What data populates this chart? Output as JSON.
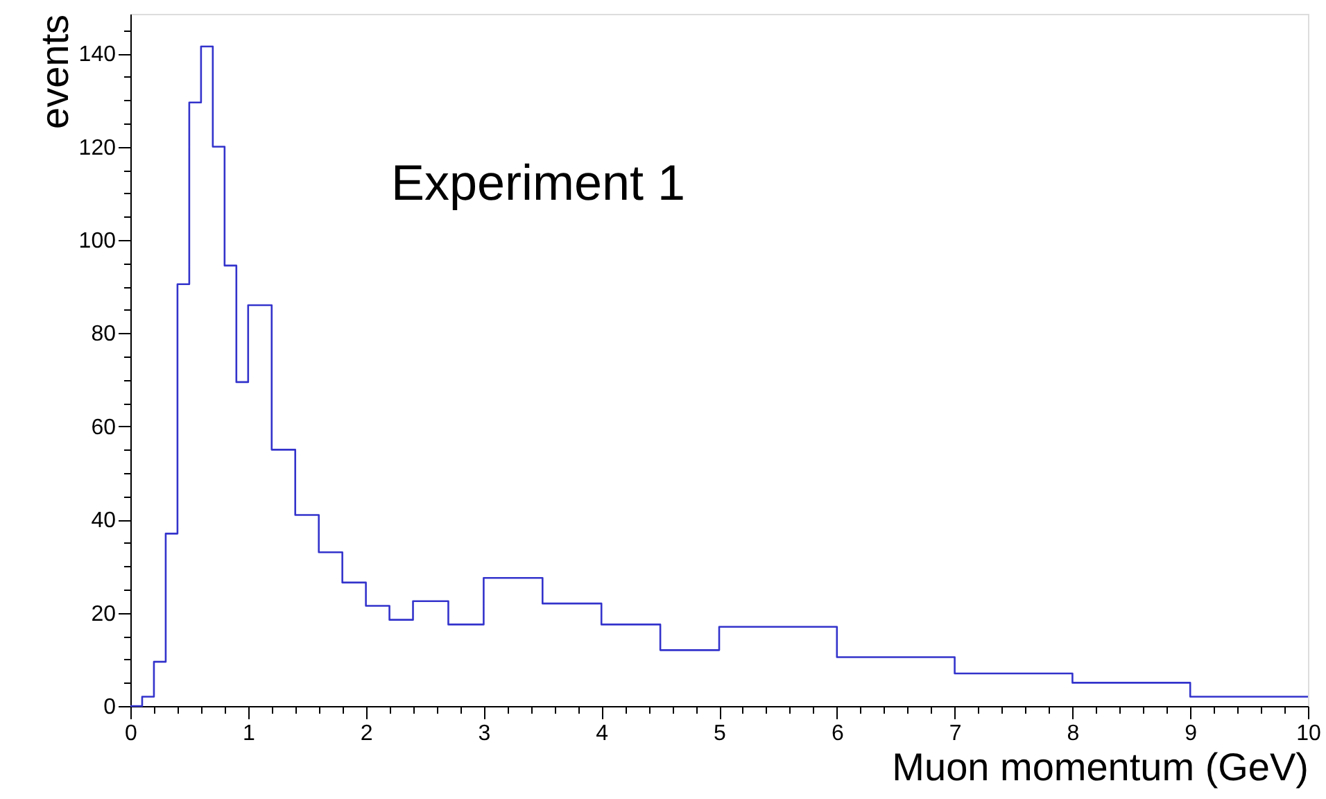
{
  "chart_data": {
    "type": "histogram",
    "xlabel": "Muon momentum (GeV)",
    "ylabel": "events",
    "annotations": [
      "Experiment 1"
    ],
    "bins": [
      0,
      0.1,
      0.2,
      0.3,
      0.4,
      0.5,
      0.6,
      0.7,
      0.8,
      0.9,
      1.0,
      1.2,
      1.4,
      1.6,
      1.8,
      2.0,
      2.2,
      2.4,
      2.7,
      3.0,
      3.5,
      4.0,
      4.5,
      5.0,
      6.0,
      7.0,
      8.0,
      9.0,
      10.0
    ],
    "values": [
      0,
      2,
      9.5,
      37,
      90.5,
      129.5,
      141.5,
      120,
      94.5,
      69.5,
      86,
      55,
      41,
      33,
      26.5,
      21.5,
      18.5,
      22.5,
      17.5,
      27.5,
      22,
      17.5,
      12,
      17,
      10.5,
      7,
      5,
      2
    ],
    "color": "#3333cc",
    "xlim": [
      0,
      10
    ],
    "ylim": [
      0,
      148.5
    ],
    "xticks": [
      0,
      {
        "value": 0.2,
        "label": null
      },
      {
        "value": 0.4,
        "label": null
      },
      {
        "value": 0.6,
        "label": null
      },
      {
        "value": 0.8,
        "label": null
      },
      1,
      {
        "value": 1.2,
        "label": null
      },
      {
        "value": 1.4,
        "label": null
      },
      {
        "value": 1.6,
        "label": null
      },
      {
        "value": 1.8,
        "label": null
      },
      2,
      {
        "value": 2.2,
        "label": null
      },
      {
        "value": 2.4,
        "label": null
      },
      {
        "value": 2.6,
        "label": null
      },
      {
        "value": 2.8,
        "label": null
      },
      3,
      {
        "value": 3.2,
        "label": null
      },
      {
        "value": 3.4,
        "label": null
      },
      {
        "value": 3.6,
        "label": null
      },
      {
        "value": 3.8,
        "label": null
      },
      4,
      {
        "value": 4.2,
        "label": null
      },
      {
        "value": 4.4,
        "label": null
      },
      {
        "value": 4.6,
        "label": null
      },
      {
        "value": 4.8,
        "label": null
      },
      5,
      {
        "value": 5.2,
        "label": null
      },
      {
        "value": 5.4,
        "label": null
      },
      {
        "value": 5.6,
        "label": null
      },
      {
        "value": 5.8,
        "label": null
      },
      6,
      {
        "value": 6.2,
        "label": null
      },
      {
        "value": 6.4,
        "label": null
      },
      {
        "value": 6.6,
        "label": null
      },
      {
        "value": 6.8,
        "label": null
      },
      7,
      {
        "value": 7.2,
        "label": null
      },
      {
        "value": 7.4,
        "label": null
      },
      {
        "value": 7.6,
        "label": null
      },
      {
        "value": 7.8,
        "label": null
      },
      8,
      {
        "value": 8.2,
        "label": null
      },
      {
        "value": 8.4,
        "label": null
      },
      {
        "value": 8.6,
        "label": null
      },
      {
        "value": 8.8,
        "label": null
      },
      9,
      {
        "value": 9.2,
        "label": null
      },
      {
        "value": 9.4,
        "label": null
      },
      {
        "value": 9.6,
        "label": null
      },
      {
        "value": 9.8,
        "label": null
      },
      10
    ],
    "yticks": [
      0,
      {
        "value": 5,
        "label": null
      },
      {
        "value": 10,
        "label": null
      },
      {
        "value": 15,
        "label": null
      },
      20,
      {
        "value": 25,
        "label": null
      },
      {
        "value": 30,
        "label": null
      },
      {
        "value": 35,
        "label": null
      },
      40,
      {
        "value": 45,
        "label": null
      },
      {
        "value": 50,
        "label": null
      },
      {
        "value": 55,
        "label": null
      },
      60,
      {
        "value": 65,
        "label": null
      },
      {
        "value": 70,
        "label": null
      },
      {
        "value": 75,
        "label": null
      },
      80,
      {
        "value": 85,
        "label": null
      },
      {
        "value": 90,
        "label": null
      },
      {
        "value": 95,
        "label": null
      },
      100,
      {
        "value": 105,
        "label": null
      },
      {
        "value": 110,
        "label": null
      },
      {
        "value": 115,
        "label": null
      },
      120,
      {
        "value": 125,
        "label": null
      },
      {
        "value": 130,
        "label": null
      },
      {
        "value": 135,
        "label": null
      },
      140,
      {
        "value": 145,
        "label": null
      }
    ],
    "grid": false
  }
}
